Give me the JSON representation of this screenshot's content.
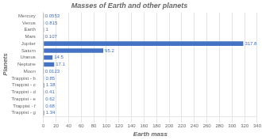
{
  "chart_data": {
    "type": "bar",
    "orientation": "horizontal",
    "title": "Masses of Earth and other planets",
    "xlabel": "Earth mass",
    "ylabel": "Planets",
    "categories": [
      "Mercury",
      "Venus",
      "Earth",
      "Mars",
      "Jupiter",
      "Saturn",
      "Uranus",
      "Neptune",
      "Moon",
      "Trappist - b",
      "Trappist - c",
      "Trappist - d",
      "Trappist - e",
      "Trappist - f",
      "Trappist - g"
    ],
    "values": [
      0.0553,
      0.815,
      1,
      0.107,
      317.8,
      95.2,
      14.5,
      17.1,
      0.0123,
      0.85,
      1.38,
      0.41,
      0.62,
      0.68,
      1.34
    ],
    "color": "#4472c4",
    "xlim": [
      0,
      340
    ],
    "xticks": [
      0,
      20,
      40,
      60,
      80,
      100,
      120,
      140,
      160,
      180,
      200,
      220,
      240,
      260,
      280,
      300,
      320,
      340
    ],
    "grid": true,
    "data_labels": true
  }
}
